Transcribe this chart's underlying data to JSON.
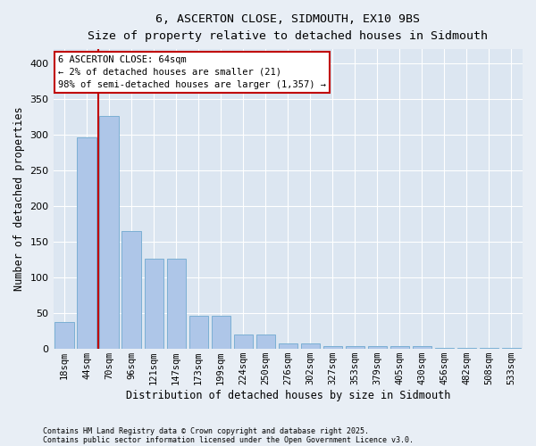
{
  "title1": "6, ASCERTON CLOSE, SIDMOUTH, EX10 9BS",
  "title2": "Size of property relative to detached houses in Sidmouth",
  "xlabel": "Distribution of detached houses by size in Sidmouth",
  "ylabel": "Number of detached properties",
  "categories": [
    "18sqm",
    "44sqm",
    "70sqm",
    "96sqm",
    "121sqm",
    "147sqm",
    "173sqm",
    "199sqm",
    "224sqm",
    "250sqm",
    "276sqm",
    "302sqm",
    "327sqm",
    "353sqm",
    "379sqm",
    "405sqm",
    "430sqm",
    "456sqm",
    "482sqm",
    "508sqm",
    "533sqm"
  ],
  "values": [
    38,
    296,
    327,
    165,
    127,
    127,
    46,
    46,
    20,
    20,
    8,
    8,
    4,
    4,
    4,
    4,
    4,
    2,
    2,
    2,
    2
  ],
  "bar_color": "#aec6e8",
  "bar_edgecolor": "#7bafd4",
  "background_color": "#dce6f1",
  "fig_background_color": "#e8eef5",
  "vline_x": 1.5,
  "vline_color": "#c00000",
  "annotation_title": "6 ASCERTON CLOSE: 64sqm",
  "annotation_line1": "← 2% of detached houses are smaller (21)",
  "annotation_line2": "98% of semi-detached houses are larger (1,357) →",
  "annotation_box_color": "#c00000",
  "ylim": [
    0,
    420
  ],
  "yticks": [
    0,
    50,
    100,
    150,
    200,
    250,
    300,
    350,
    400
  ],
  "footnote1": "Contains HM Land Registry data © Crown copyright and database right 2025.",
  "footnote2": "Contains public sector information licensed under the Open Government Licence v3.0."
}
